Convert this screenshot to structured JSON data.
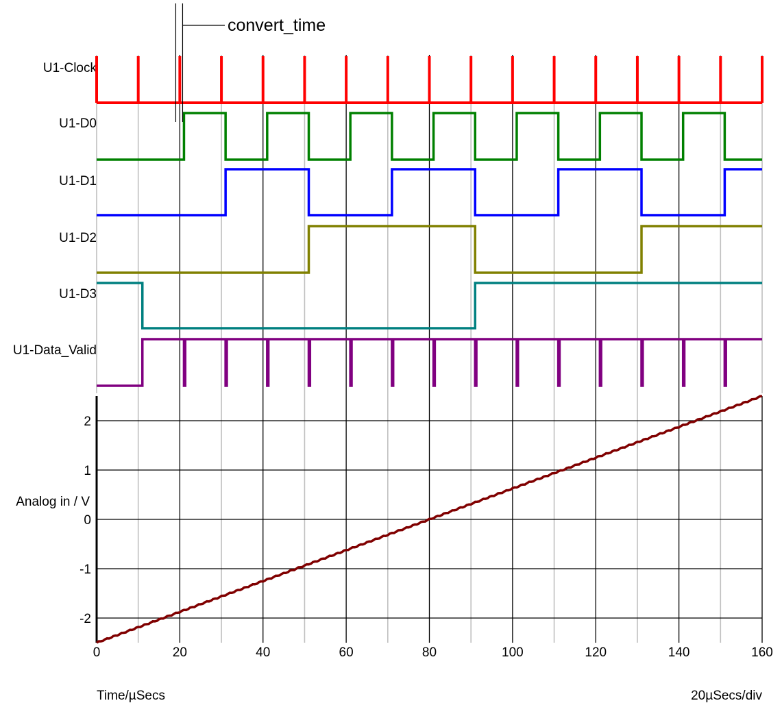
{
  "annotation": {
    "text": "convert_time",
    "time_us": 21
  },
  "footer": {
    "left": "Time/µSecs",
    "right": "20µSecs/div"
  },
  "chart_data": [
    {
      "type": "digital-timing",
      "x_range": [
        0,
        160
      ],
      "signals": [
        {
          "name": "U1-Clock",
          "color": "#ff0000",
          "kind": "pulses",
          "pulse_times": [
            0,
            10,
            20,
            30,
            40,
            50,
            60,
            70,
            80,
            90,
            100,
            110,
            120,
            130,
            140,
            150,
            160
          ],
          "initial": 0
        },
        {
          "name": "U1-D0",
          "color": "#008000",
          "kind": "edges",
          "initial": 0,
          "edges": [
            21,
            31,
            41,
            51,
            61,
            71,
            81,
            91,
            101,
            111,
            121,
            131,
            141,
            151
          ]
        },
        {
          "name": "U1-D1",
          "color": "#0000ff",
          "kind": "edges",
          "initial": 0,
          "edges": [
            31,
            51,
            71,
            91,
            111,
            131,
            151
          ]
        },
        {
          "name": "U1-D2",
          "color": "#808000",
          "kind": "edges",
          "initial": 0,
          "edges": [
            51,
            91,
            131
          ]
        },
        {
          "name": "U1-D3",
          "color": "#008080",
          "kind": "edges",
          "initial": 1,
          "edges": [
            11,
            91
          ]
        },
        {
          "name": "U1-Data_Valid",
          "color": "#800080",
          "kind": "edges",
          "initial": 0,
          "edges": [
            11,
            21,
            21.3,
            31,
            31.3,
            41,
            41.3,
            51,
            51.3,
            61,
            61.3,
            71,
            71.3,
            81,
            81.3,
            91,
            91.3,
            101,
            101.3,
            111,
            111.3,
            121,
            121.3,
            131,
            131.3,
            141,
            141.3,
            151,
            151.3
          ]
        }
      ]
    },
    {
      "type": "line",
      "ylabel": "Analog in / V",
      "xlabel": "Time/µSecs",
      "xlim": [
        0,
        160
      ],
      "ylim": [
        -2.5,
        2.5
      ],
      "xticks": [
        0,
        20,
        40,
        60,
        80,
        100,
        120,
        140,
        160
      ],
      "yticks": [
        -2,
        -1,
        0,
        1,
        2
      ],
      "grid": true,
      "series": [
        {
          "color": "#800000",
          "x": [
            0,
            160
          ],
          "y": [
            -2.5,
            2.5
          ]
        }
      ]
    }
  ]
}
